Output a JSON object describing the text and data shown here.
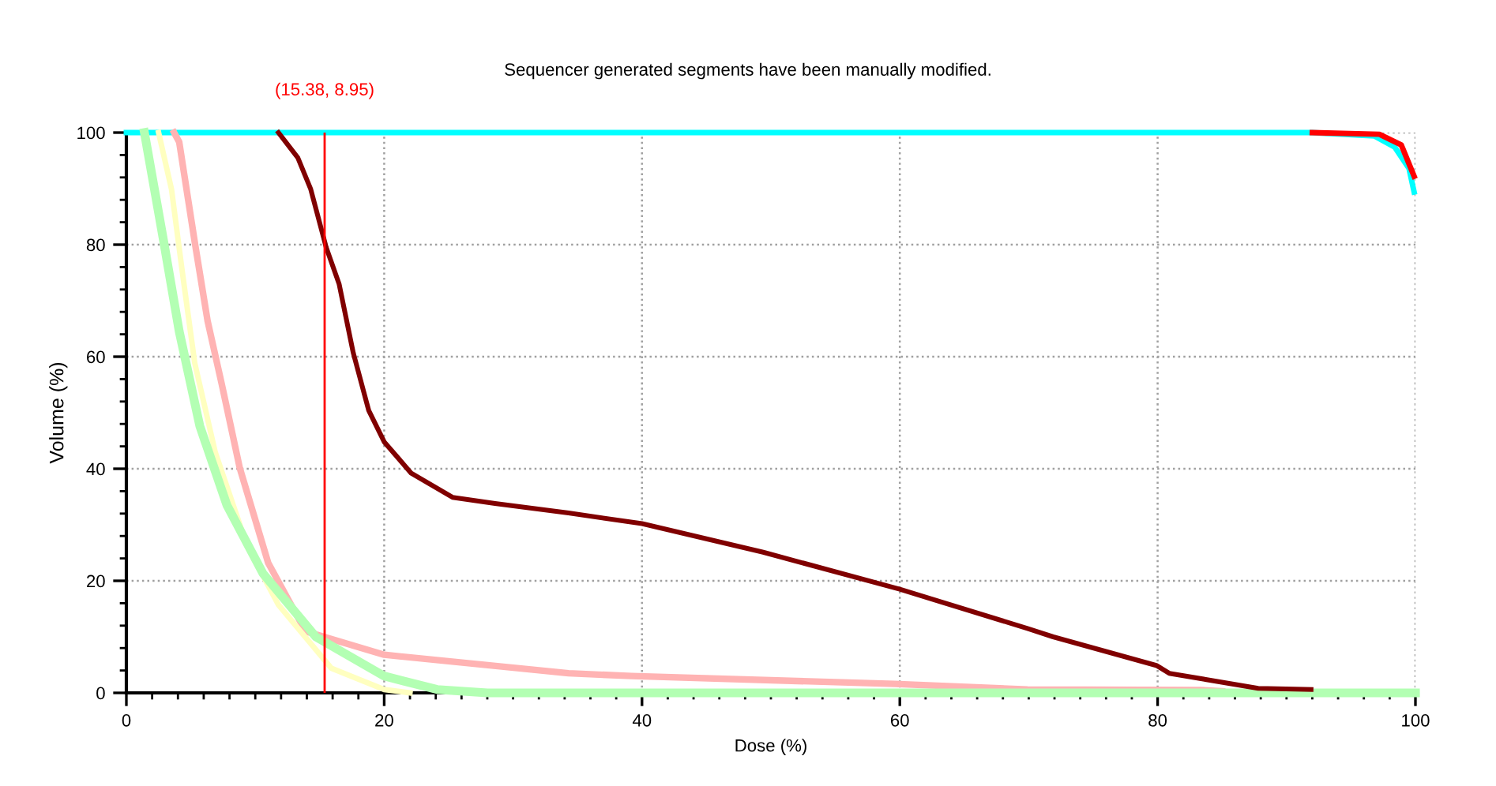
{
  "chart_data": {
    "type": "line",
    "title": "Sequencer generated segments have been manually modified.",
    "xlabel": "Dose (%)",
    "ylabel": "Volume (%)",
    "xlim": [
      0,
      100
    ],
    "ylim": [
      0,
      100
    ],
    "xticks": [
      0,
      20,
      40,
      60,
      80,
      100
    ],
    "yticks": [
      0,
      20,
      40,
      60,
      80,
      100
    ],
    "grid": true,
    "legend": false,
    "marker": "none",
    "line_style": "solid",
    "series": [
      {
        "color": "#00ffff",
        "x": [
          0,
          92,
          96.8,
          98.4,
          99.5,
          99.9
        ],
        "values": [
          100,
          100,
          99.4,
          97.4,
          93.6,
          89.4
        ]
      },
      {
        "color": "#ff0000",
        "x": [
          92,
          97.2,
          98.9,
          99.9
        ],
        "values": [
          100,
          99.7,
          97.8,
          92.2
        ]
      },
      {
        "color": "#ffb3b3",
        "x": [
          3.7,
          4.1,
          5.3,
          6.3,
          7.4,
          8.8,
          11,
          13.9,
          20,
          34.3,
          39.2,
          59.6,
          69.9,
          83.3,
          85
        ],
        "values": [
          100,
          98.3,
          80.5,
          66.4,
          55.1,
          40.1,
          23.2,
          11,
          6.8,
          3.5,
          3.0,
          1.6,
          0.6,
          0.5,
          0.3
        ]
      },
      {
        "color": "#ffffc0",
        "x": [
          2.5,
          3.5,
          4.3,
          5.3,
          6.9,
          9.4,
          11.8,
          15.9,
          20,
          22
        ],
        "values": [
          100,
          89.9,
          75.8,
          58.9,
          42.9,
          26,
          15.7,
          4.4,
          0.6,
          0
        ]
      },
      {
        "color": "#b3ffb3",
        "x": [
          1.4,
          2.9,
          4.1,
          5.7,
          7.8,
          10.6,
          14.7,
          20,
          24.1,
          28,
          100
        ],
        "values": [
          100,
          80.5,
          64.5,
          47.6,
          33.5,
          21.3,
          10,
          3,
          0.6,
          0,
          0
        ]
      },
      {
        "color": "#800000",
        "x": [
          11.8,
          13.3,
          14.3,
          15.5,
          16.5,
          17.6,
          18.8,
          20,
          22.1,
          25.3,
          28.6,
          34.3,
          40,
          49.4,
          60,
          69.9,
          71.9,
          79.9,
          80.9,
          87.8,
          91.9
        ],
        "values": [
          100,
          95.5,
          89.9,
          79.5,
          73,
          60.7,
          50.4,
          44.8,
          39.2,
          34.9,
          33.8,
          32.1,
          30.2,
          25.1,
          18.5,
          11.5,
          10,
          4.9,
          3.5,
          0.8,
          0.6
        ]
      }
    ],
    "ref_lines": [
      {
        "axis": "x",
        "value": 15.38,
        "label": "(15.38, 8.95)",
        "color": "#ff0000",
        "line_style": "solid"
      }
    ]
  }
}
